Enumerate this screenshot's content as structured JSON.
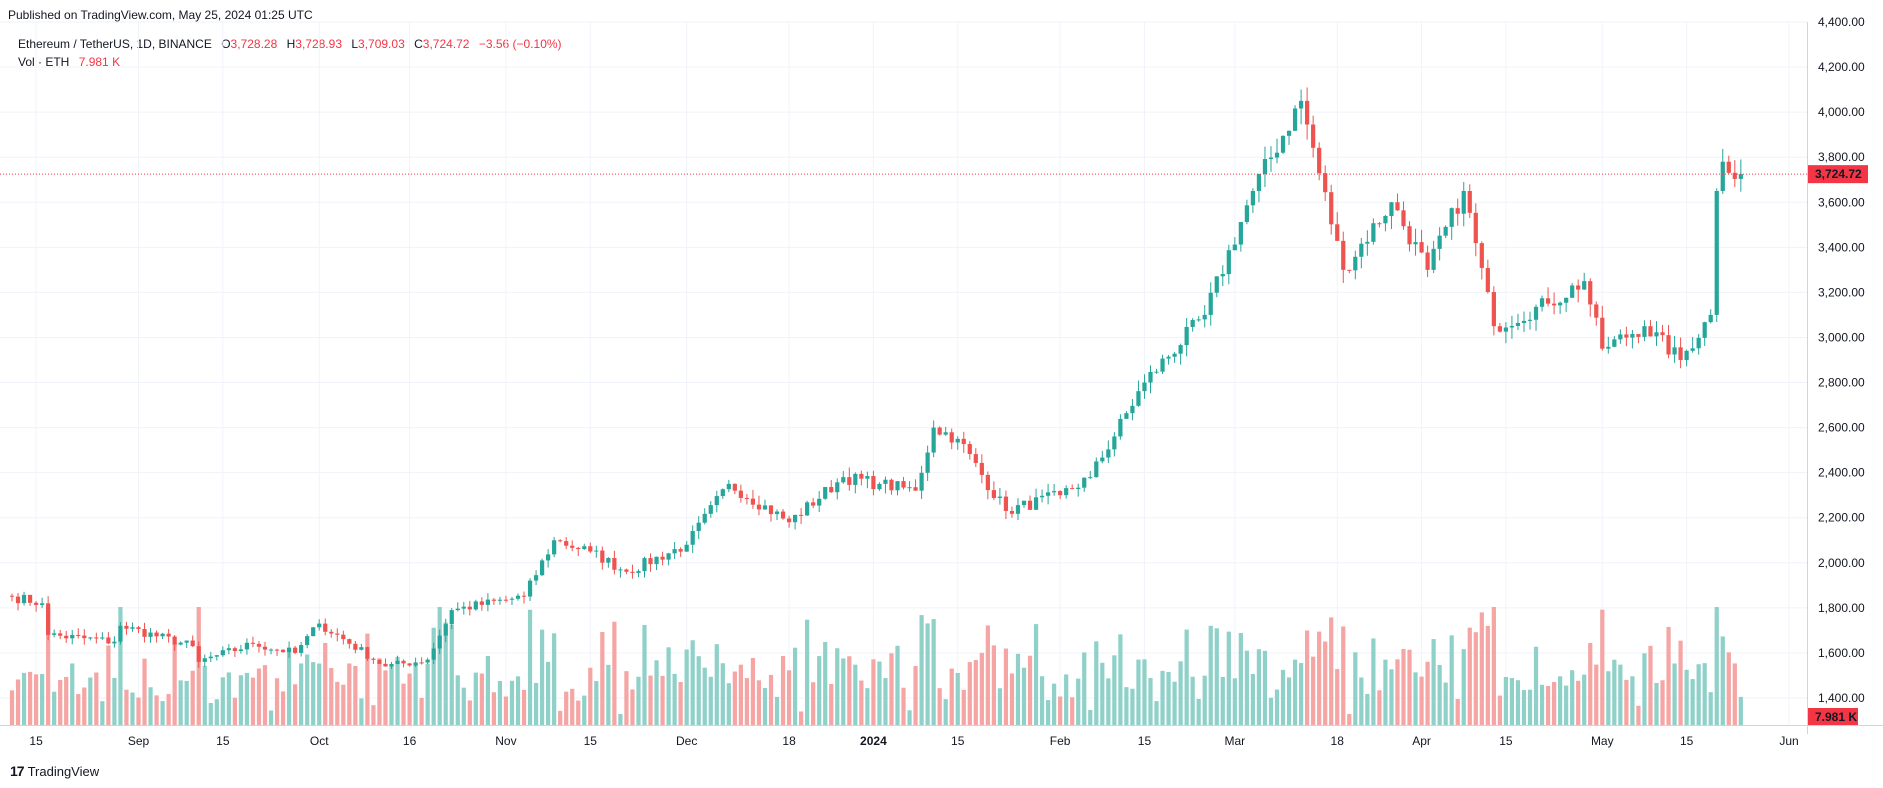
{
  "header": {
    "published": "Published on TradingView.com, May 25, 2024 01:25 UTC"
  },
  "legend": {
    "symbol": "Ethereum / TetherUS, 1D, BINANCE",
    "open_label": "O",
    "open": "3,728.28",
    "high_label": "H",
    "high": "3,728.93",
    "low_label": "L",
    "low": "3,709.03",
    "close_label": "C",
    "close": "3,724.72",
    "change": "−3.56 (−0.10%)",
    "vol_label": "Vol · ETH",
    "vol_value": "7.981 K"
  },
  "footer": {
    "brand": "TradingView",
    "logo": "17"
  },
  "colors": {
    "up": "#26a69a",
    "down": "#ef5350",
    "up_vol": "#8fd1c9",
    "down_vol": "#f5a5a3",
    "price_line": "#f23645"
  },
  "chart_data": {
    "type": "candlestick",
    "title": "Ethereum / TetherUS, 1D, BINANCE",
    "ylim": [
      1280,
      4400
    ],
    "y_ticks": [
      1400,
      1600,
      1800,
      2000,
      2200,
      2400,
      2600,
      2800,
      3000,
      3200,
      3400,
      3600,
      3800,
      4000,
      4200,
      4400
    ],
    "y_tick_labels": [
      "1,400.00",
      "1,600.00",
      "1,800.00",
      "2,000.00",
      "2,200.00",
      "2,400.00",
      "2,600.00",
      "2,800.00",
      "3,000.00",
      "3,200.00",
      "3,400.00",
      "3,600.00",
      "3,800.00",
      "4,000.00",
      "4,200.00",
      "4,400.00"
    ],
    "x_start_date": "2023-08-11",
    "x_end_date": "2024-05-31",
    "x_ticks": [
      {
        "date": "2023-08-15",
        "label": "15"
      },
      {
        "date": "2023-09-01",
        "label": "Sep"
      },
      {
        "date": "2023-09-15",
        "label": "15"
      },
      {
        "date": "2023-10-01",
        "label": "Oct"
      },
      {
        "date": "2023-10-16",
        "label": "16"
      },
      {
        "date": "2023-11-01",
        "label": "Nov"
      },
      {
        "date": "2023-11-15",
        "label": "15"
      },
      {
        "date": "2023-12-01",
        "label": "Dec"
      },
      {
        "date": "2023-12-18",
        "label": "18"
      },
      {
        "date": "2024-01-01",
        "label": "2024"
      },
      {
        "date": "2024-01-15",
        "label": "15"
      },
      {
        "date": "2024-02-01",
        "label": "Feb"
      },
      {
        "date": "2024-02-15",
        "label": "15"
      },
      {
        "date": "2024-03-01",
        "label": "Mar"
      },
      {
        "date": "2024-03-18",
        "label": "18"
      },
      {
        "date": "2024-04-01",
        "label": "Apr"
      },
      {
        "date": "2024-04-15",
        "label": "15"
      },
      {
        "date": "2024-05-01",
        "label": "May"
      },
      {
        "date": "2024-05-15",
        "label": "15"
      },
      {
        "date": "2024-06-01",
        "label": "Jun"
      }
    ],
    "last_price": 3724.72,
    "last_price_label": "3,724.72",
    "volume_label": "7.981 K",
    "close_keyframes": [
      {
        "date": "2023-08-11",
        "close": 1850
      },
      {
        "date": "2023-08-16",
        "close": 1820
      },
      {
        "date": "2023-08-17",
        "close": 1680
      },
      {
        "date": "2023-08-28",
        "close": 1650
      },
      {
        "date": "2023-08-29",
        "close": 1720
      },
      {
        "date": "2023-09-10",
        "close": 1630
      },
      {
        "date": "2023-09-11",
        "close": 1560
      },
      {
        "date": "2023-09-20",
        "close": 1640
      },
      {
        "date": "2023-09-27",
        "close": 1600
      },
      {
        "date": "2023-10-01",
        "close": 1730
      },
      {
        "date": "2023-10-12",
        "close": 1540
      },
      {
        "date": "2023-10-19",
        "close": 1570
      },
      {
        "date": "2023-10-23",
        "close": 1790
      },
      {
        "date": "2023-11-04",
        "close": 1850
      },
      {
        "date": "2023-11-09",
        "close": 2100
      },
      {
        "date": "2023-11-15",
        "close": 2050
      },
      {
        "date": "2023-11-21",
        "close": 1960
      },
      {
        "date": "2023-12-01",
        "close": 2080
      },
      {
        "date": "2023-12-08",
        "close": 2350
      },
      {
        "date": "2023-12-18",
        "close": 2180
      },
      {
        "date": "2023-12-27",
        "close": 2380
      },
      {
        "date": "2024-01-02",
        "close": 2350
      },
      {
        "date": "2024-01-08",
        "close": 2320
      },
      {
        "date": "2024-01-11",
        "close": 2600
      },
      {
        "date": "2024-01-15",
        "close": 2550
      },
      {
        "date": "2024-01-23",
        "close": 2230
      },
      {
        "date": "2024-02-01",
        "close": 2300
      },
      {
        "date": "2024-02-06",
        "close": 2380
      },
      {
        "date": "2024-02-15",
        "close": 2800
      },
      {
        "date": "2024-02-25",
        "close": 3100
      },
      {
        "date": "2024-03-04",
        "close": 3650
      },
      {
        "date": "2024-03-12",
        "close": 4050
      },
      {
        "date": "2024-03-19",
        "close": 3300
      },
      {
        "date": "2024-03-27",
        "close": 3600
      },
      {
        "date": "2024-04-02",
        "close": 3300
      },
      {
        "date": "2024-04-08",
        "close": 3650
      },
      {
        "date": "2024-04-13",
        "close": 3050
      },
      {
        "date": "2024-04-22",
        "close": 3150
      },
      {
        "date": "2024-04-28",
        "close": 3250
      },
      {
        "date": "2024-05-01",
        "close": 2950
      },
      {
        "date": "2024-05-08",
        "close": 3050
      },
      {
        "date": "2024-05-14",
        "close": 2900
      },
      {
        "date": "2024-05-19",
        "close": 3100
      },
      {
        "date": "2024-05-20",
        "close": 3650
      },
      {
        "date": "2024-05-21",
        "close": 3780
      },
      {
        "date": "2024-05-24",
        "close": 3724.72
      }
    ]
  }
}
